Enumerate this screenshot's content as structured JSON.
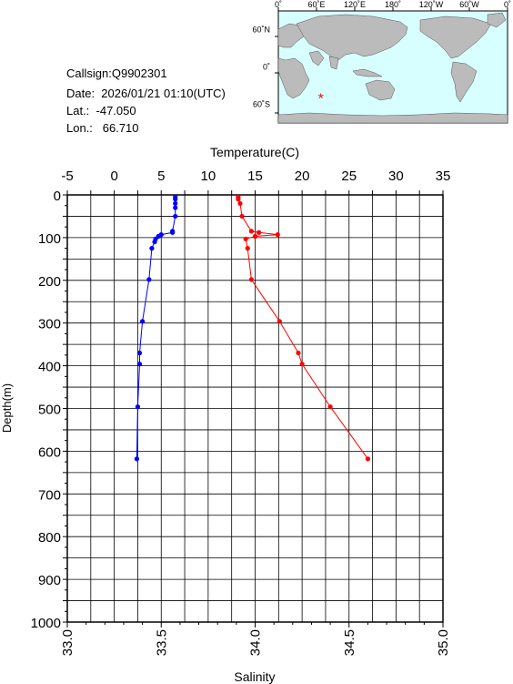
{
  "info": {
    "callsign": "Callsign:Q9902301",
    "date": "Date:  2026/01/21 01:10(UTC)",
    "lat": "Lat.:  -47.050",
    "lon": "Lon.:   66.710"
  },
  "map": {
    "top_labels": [
      "0˚",
      "60˚E",
      "120˚E",
      "180˚",
      "120˚W",
      "60˚W",
      "0˚"
    ],
    "left_labels": [
      "60˚N",
      "0˚",
      "60˚S"
    ],
    "marker_lat": -47.05,
    "marker_lon": 66.71,
    "colors": {
      "ocean": "#d8ffff",
      "land": "#bbbbbb",
      "marker": "#ff0000"
    }
  },
  "chart_data": {
    "type": "line",
    "ylabel": "Depth(m)",
    "top_axis": {
      "label": "Temperature(C)",
      "min": -5,
      "max": 35,
      "ticks": [
        -5,
        0,
        5,
        10,
        15,
        20,
        25,
        30,
        35
      ],
      "tick_labels": [
        "-5",
        "0",
        "5",
        "10",
        "15",
        "20",
        "25",
        "30",
        "35"
      ]
    },
    "bottom_axis": {
      "label": "Salinity",
      "min": 33.0,
      "max": 35.0,
      "ticks": [
        33.0,
        33.5,
        34.0,
        34.5,
        35.0
      ],
      "tick_labels": [
        "33.0",
        "33.5",
        "34.0",
        "34.5",
        "35.0"
      ]
    },
    "y_axis": {
      "min": 0,
      "max": 1000,
      "inverted": true,
      "ticks": [
        0,
        100,
        200,
        300,
        400,
        500,
        600,
        700,
        800,
        900,
        1000
      ],
      "tick_labels": [
        "0",
        "100",
        "200",
        "300",
        "400",
        "500",
        "600",
        "700",
        "800",
        "900",
        "1000"
      ]
    },
    "grid": true,
    "series": [
      {
        "variable": "temperature",
        "color": "#0000ff",
        "points": [
          {
            "x": 6.5,
            "depth": 5
          },
          {
            "x": 6.5,
            "depth": 10
          },
          {
            "x": 6.5,
            "depth": 20
          },
          {
            "x": 6.5,
            "depth": 30
          },
          {
            "x": 6.5,
            "depth": 50
          },
          {
            "x": 6.2,
            "depth": 85
          },
          {
            "x": 6.2,
            "depth": 88
          },
          {
            "x": 5.0,
            "depth": 93
          },
          {
            "x": 4.7,
            "depth": 97
          },
          {
            "x": 4.4,
            "depth": 103
          },
          {
            "x": 4.3,
            "depth": 110
          },
          {
            "x": 4.0,
            "depth": 125
          },
          {
            "x": 3.7,
            "depth": 198
          },
          {
            "x": 3.0,
            "depth": 296
          },
          {
            "x": 2.7,
            "depth": 370
          },
          {
            "x": 2.7,
            "depth": 396
          },
          {
            "x": 2.5,
            "depth": 496
          },
          {
            "x": 2.4,
            "depth": 618
          }
        ]
      },
      {
        "variable": "salinity",
        "color": "#ff0000",
        "points": [
          {
            "x": 33.91,
            "depth": 5
          },
          {
            "x": 33.91,
            "depth": 10
          },
          {
            "x": 33.92,
            "depth": 20
          },
          {
            "x": 33.93,
            "depth": 50
          },
          {
            "x": 33.98,
            "depth": 85
          },
          {
            "x": 34.02,
            "depth": 88
          },
          {
            "x": 34.12,
            "depth": 93
          },
          {
            "x": 34.0,
            "depth": 97
          },
          {
            "x": 33.95,
            "depth": 103
          },
          {
            "x": 33.96,
            "depth": 125
          },
          {
            "x": 33.98,
            "depth": 198
          },
          {
            "x": 34.13,
            "depth": 296
          },
          {
            "x": 34.23,
            "depth": 370
          },
          {
            "x": 34.25,
            "depth": 396
          },
          {
            "x": 34.4,
            "depth": 496
          },
          {
            "x": 34.6,
            "depth": 618
          }
        ]
      }
    ]
  }
}
